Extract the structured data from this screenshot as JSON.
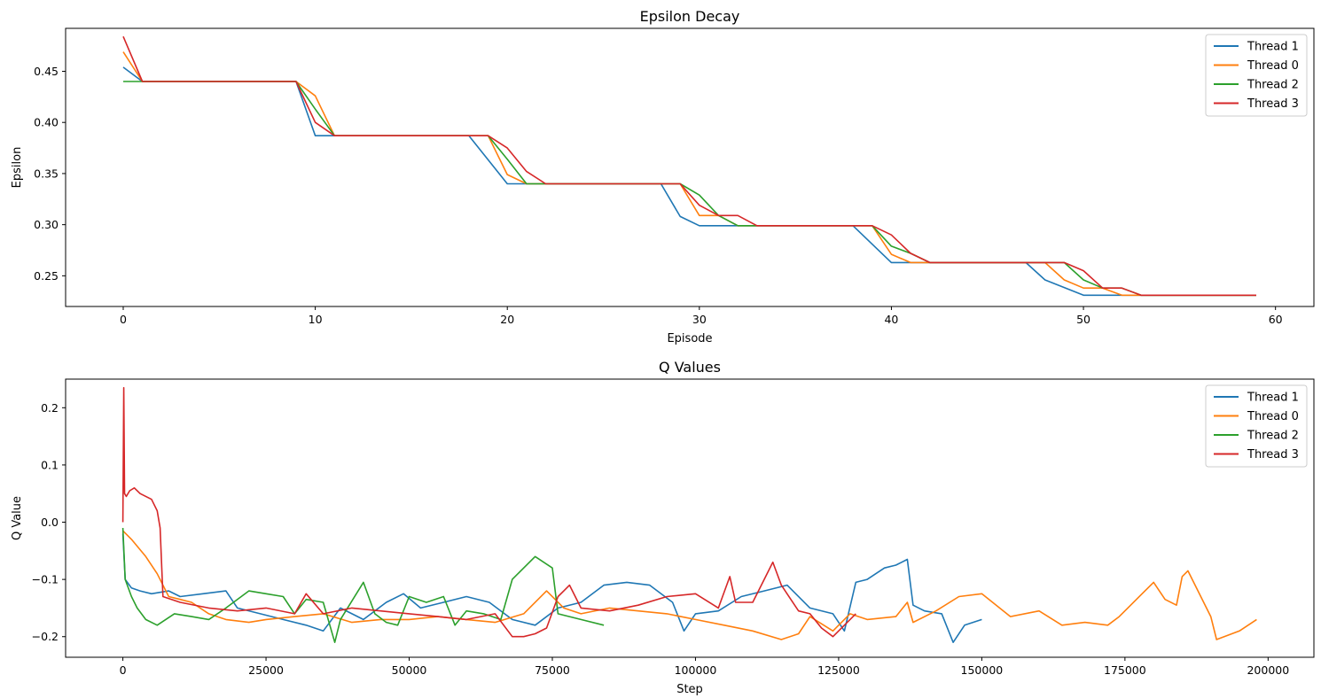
{
  "chart_data": [
    {
      "type": "line",
      "title": "Epsilon Decay",
      "xlabel": "Episode",
      "ylabel": "Epsilon",
      "xlim": [
        -3,
        62
      ],
      "ylim": [
        0.22,
        0.492
      ],
      "xticks": [
        0,
        10,
        20,
        30,
        40,
        50,
        60
      ],
      "yticks": [
        0.25,
        0.3,
        0.35,
        0.4,
        0.45
      ],
      "ytick_labels": [
        "0.25",
        "0.30",
        "0.35",
        "0.40",
        "0.45"
      ],
      "grid": false,
      "legend_position": "top-right",
      "series": [
        {
          "name": "Thread 1",
          "color": "#1f77b4",
          "x": [
            0,
            1,
            9,
            10,
            11,
            18,
            20,
            28,
            29,
            30,
            38,
            40,
            47,
            48,
            50,
            53,
            59
          ],
          "y": [
            0.454,
            0.44,
            0.44,
            0.387,
            0.387,
            0.387,
            0.34,
            0.34,
            0.308,
            0.299,
            0.299,
            0.263,
            0.263,
            0.246,
            0.231,
            0.231,
            0.231
          ]
        },
        {
          "name": "Thread 0",
          "color": "#ff7f0e",
          "x": [
            0,
            1,
            9,
            10,
            11,
            19,
            20,
            21,
            29,
            30,
            31,
            32,
            33,
            39,
            40,
            41,
            42,
            48,
            49,
            50,
            51,
            52,
            53,
            59
          ],
          "y": [
            0.469,
            0.44,
            0.44,
            0.426,
            0.387,
            0.387,
            0.349,
            0.34,
            0.34,
            0.309,
            0.309,
            0.299,
            0.299,
            0.299,
            0.271,
            0.263,
            0.263,
            0.263,
            0.246,
            0.238,
            0.238,
            0.231,
            0.231,
            0.231
          ]
        },
        {
          "name": "Thread 2",
          "color": "#2ca02c",
          "x": [
            0,
            1,
            9,
            10,
            11,
            19,
            20,
            21,
            29,
            30,
            31,
            32,
            33,
            39,
            40,
            41,
            42,
            49,
            50,
            51,
            52,
            53,
            59
          ],
          "y": [
            0.44,
            0.44,
            0.44,
            0.413,
            0.387,
            0.387,
            0.364,
            0.34,
            0.34,
            0.329,
            0.309,
            0.299,
            0.299,
            0.299,
            0.279,
            0.272,
            0.263,
            0.263,
            0.246,
            0.238,
            0.238,
            0.231,
            0.231
          ]
        },
        {
          "name": "Thread 3",
          "color": "#d62728",
          "x": [
            0,
            1,
            9,
            10,
            11,
            19,
            20,
            21,
            22,
            29,
            30,
            31,
            32,
            33,
            39,
            40,
            41,
            42,
            49,
            50,
            51,
            52,
            53,
            59
          ],
          "y": [
            0.484,
            0.44,
            0.44,
            0.4,
            0.387,
            0.387,
            0.375,
            0.352,
            0.34,
            0.34,
            0.319,
            0.309,
            0.309,
            0.299,
            0.299,
            0.29,
            0.272,
            0.263,
            0.263,
            0.255,
            0.238,
            0.238,
            0.231,
            0.231
          ]
        }
      ]
    },
    {
      "type": "line",
      "title": "Q Values",
      "xlabel": "Step",
      "ylabel": "Q Value",
      "xlim": [
        -10000,
        208000
      ],
      "ylim": [
        -0.236,
        0.25
      ],
      "xticks": [
        0,
        25000,
        50000,
        75000,
        100000,
        125000,
        150000,
        175000,
        200000
      ],
      "yticks": [
        -0.2,
        -0.1,
        0.0,
        0.1,
        0.2
      ],
      "ytick_labels": [
        "−0.2",
        "−0.1",
        "0.0",
        "0.1",
        "0.2"
      ],
      "grid": false,
      "legend_position": "top-right",
      "series": [
        {
          "name": "Thread 1",
          "color": "#1f77b4",
          "x": [
            0,
            400,
            1500,
            3000,
            5000,
            8000,
            10000,
            14000,
            18000,
            20000,
            24000,
            28000,
            32000,
            35000,
            38000,
            42000,
            46000,
            49000,
            52000,
            56000,
            60000,
            64000,
            68000,
            72000,
            76000,
            80000,
            84000,
            88000,
            92000,
            96000,
            98000,
            100000,
            104000,
            108000,
            112000,
            116000,
            120000,
            124000,
            126000,
            128000,
            130000,
            133000,
            135000,
            137000,
            138000,
            140000,
            143000,
            145000,
            147000,
            150000
          ],
          "y": [
            -0.02,
            -0.1,
            -0.115,
            -0.12,
            -0.125,
            -0.12,
            -0.13,
            -0.125,
            -0.12,
            -0.15,
            -0.16,
            -0.17,
            -0.18,
            -0.19,
            -0.15,
            -0.17,
            -0.14,
            -0.125,
            -0.15,
            -0.14,
            -0.13,
            -0.14,
            -0.17,
            -0.18,
            -0.15,
            -0.14,
            -0.11,
            -0.105,
            -0.11,
            -0.14,
            -0.19,
            -0.16,
            -0.155,
            -0.13,
            -0.12,
            -0.11,
            -0.15,
            -0.16,
            -0.19,
            -0.105,
            -0.1,
            -0.08,
            -0.075,
            -0.065,
            -0.145,
            -0.155,
            -0.16,
            -0.21,
            -0.18,
            -0.17
          ]
        },
        {
          "name": "Thread 0",
          "color": "#ff7f0e",
          "x": [
            0,
            1500,
            4000,
            6000,
            8000,
            10000,
            12000,
            15000,
            18000,
            22000,
            25000,
            30000,
            35000,
            40000,
            45000,
            50000,
            55000,
            60000,
            65000,
            70000,
            74000,
            77000,
            80000,
            85000,
            90000,
            95000,
            100000,
            105000,
            110000,
            115000,
            118000,
            120000,
            124000,
            127000,
            130000,
            135000,
            137000,
            138000,
            142000,
            146000,
            150000,
            155000,
            160000,
            164000,
            168000,
            172000,
            174000,
            178000,
            180000,
            182000,
            184000,
            185000,
            186000,
            190000,
            191000,
            195000,
            198000
          ],
          "y": [
            -0.015,
            -0.03,
            -0.06,
            -0.09,
            -0.13,
            -0.135,
            -0.14,
            -0.16,
            -0.17,
            -0.175,
            -0.17,
            -0.165,
            -0.16,
            -0.175,
            -0.17,
            -0.17,
            -0.165,
            -0.17,
            -0.175,
            -0.16,
            -0.12,
            -0.15,
            -0.16,
            -0.15,
            -0.155,
            -0.16,
            -0.17,
            -0.18,
            -0.19,
            -0.205,
            -0.195,
            -0.165,
            -0.19,
            -0.16,
            -0.17,
            -0.165,
            -0.14,
            -0.175,
            -0.155,
            -0.13,
            -0.125,
            -0.165,
            -0.155,
            -0.18,
            -0.175,
            -0.18,
            -0.165,
            -0.125,
            -0.105,
            -0.135,
            -0.145,
            -0.095,
            -0.085,
            -0.165,
            -0.205,
            -0.19,
            -0.17
          ]
        },
        {
          "name": "Thread 2",
          "color": "#2ca02c",
          "x": [
            0,
            400,
            1500,
            2500,
            4000,
            6000,
            9000,
            12000,
            15000,
            18000,
            22000,
            25000,
            28000,
            30000,
            32000,
            35000,
            37000,
            38000,
            42000,
            44000,
            46000,
            48000,
            50000,
            53000,
            56000,
            58000,
            60000,
            63000,
            66000,
            68000,
            70000,
            72000,
            75000,
            76000,
            80000,
            84000
          ],
          "y": [
            -0.01,
            -0.1,
            -0.13,
            -0.15,
            -0.17,
            -0.18,
            -0.16,
            -0.165,
            -0.17,
            -0.15,
            -0.12,
            -0.125,
            -0.13,
            -0.16,
            -0.135,
            -0.14,
            -0.21,
            -0.17,
            -0.105,
            -0.16,
            -0.175,
            -0.18,
            -0.13,
            -0.14,
            -0.13,
            -0.18,
            -0.155,
            -0.16,
            -0.17,
            -0.1,
            -0.08,
            -0.06,
            -0.08,
            -0.16,
            -0.17,
            -0.18
          ]
        },
        {
          "name": "Thread 3",
          "color": "#d62728",
          "x": [
            0,
            150,
            300,
            600,
            1200,
            2000,
            3000,
            5000,
            6000,
            6500,
            7000,
            10000,
            15000,
            20000,
            25000,
            30000,
            32000,
            35000,
            40000,
            45000,
            50000,
            55000,
            60000,
            65000,
            68000,
            70000,
            72000,
            74000,
            76000,
            78000,
            80000,
            85000,
            90000,
            95000,
            100000,
            104000,
            106000,
            107000,
            110000,
            112000,
            113500,
            115000,
            118000,
            120000,
            122000,
            124000,
            126000,
            128000
          ],
          "y": [
            0.0,
            0.235,
            0.05,
            0.045,
            0.055,
            0.06,
            0.05,
            0.04,
            0.02,
            -0.01,
            -0.13,
            -0.14,
            -0.15,
            -0.155,
            -0.15,
            -0.16,
            -0.125,
            -0.16,
            -0.15,
            -0.155,
            -0.16,
            -0.165,
            -0.17,
            -0.16,
            -0.2,
            -0.2,
            -0.195,
            -0.185,
            -0.13,
            -0.11,
            -0.15,
            -0.155,
            -0.145,
            -0.13,
            -0.125,
            -0.15,
            -0.095,
            -0.14,
            -0.14,
            -0.1,
            -0.07,
            -0.11,
            -0.155,
            -0.16,
            -0.185,
            -0.2,
            -0.18,
            -0.16
          ]
        }
      ]
    }
  ]
}
